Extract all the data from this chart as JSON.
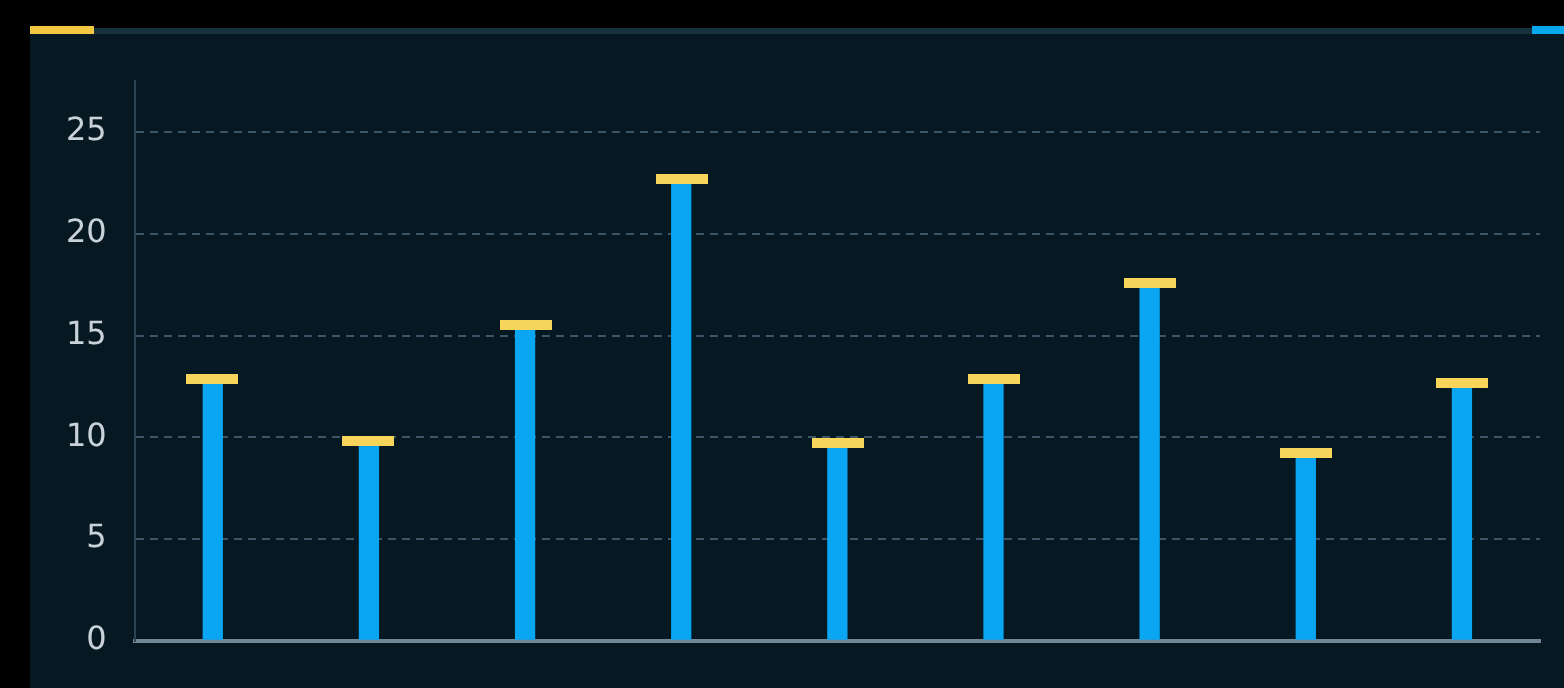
{
  "chart_data": {
    "type": "bar",
    "categories": [
      null,
      null,
      null,
      null,
      null,
      null,
      null,
      null,
      null
    ],
    "values": [
      12.8,
      9.8,
      15.5,
      22.6,
      9.7,
      12.8,
      17.5,
      9.2,
      12.6
    ],
    "color": "#0aa6f2",
    "ylim": [
      0,
      27.5
    ],
    "yticks": [
      0,
      5,
      10,
      15,
      20,
      25
    ],
    "grid": "y"
  }
}
